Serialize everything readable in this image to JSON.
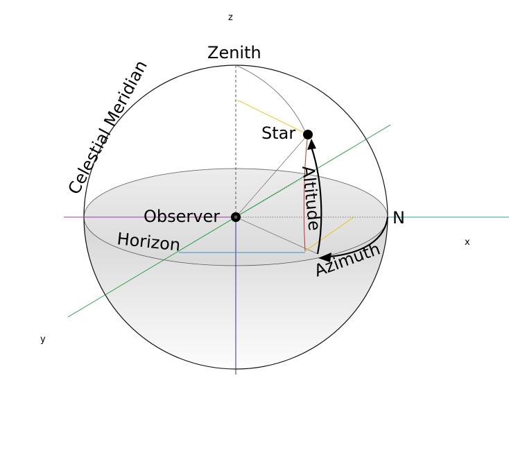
{
  "labels": {
    "zenith": "Zenith",
    "celestial_meridian": "Celestial Meridian",
    "star": "Star",
    "altitude": "Altitude",
    "observer": "Observer",
    "north": "N",
    "horizon": "Horizon",
    "azimuth": "Azimuth",
    "axis_x": "x",
    "axis_y": "y",
    "axis_z": "z"
  },
  "colors": {
    "x_axis": "#2aa198",
    "y_axis": "#1a9a3a",
    "z_axis": "#1a1a8c",
    "negative_x": "#9b3aa0",
    "star_projection": "#e8c400",
    "altitude_line": "#c0302b",
    "horizon_projection": "#3a8fd0"
  },
  "icons": [
    "observer-dot",
    "star-dot",
    "arrowhead"
  ]
}
